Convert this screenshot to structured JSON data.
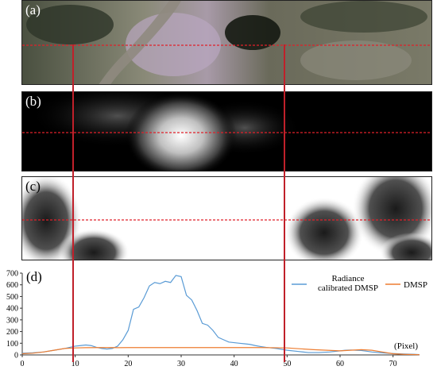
{
  "labels": {
    "a": "(a)",
    "b": "(b)",
    "c": "(c)",
    "d": "(d)"
  },
  "chart_data": {
    "type": "line",
    "xlabel": "(Pixel)",
    "xlim": [
      0,
      75
    ],
    "ylim": [
      0,
      700
    ],
    "xticks": [
      0,
      10,
      20,
      30,
      40,
      50,
      60,
      70
    ],
    "yticks": [
      0,
      100,
      200,
      300,
      400,
      500,
      600,
      700
    ],
    "legend_position": "top-right",
    "series": [
      {
        "name": "Radiance calibrated DMSP",
        "color": "#5a9bd5",
        "x": [
          0,
          2,
          4,
          6,
          8,
          9,
          10,
          11,
          12,
          13,
          14,
          15,
          16,
          17,
          18,
          19,
          20,
          21,
          22,
          23,
          24,
          25,
          26,
          27,
          28,
          29,
          30,
          31,
          32,
          33,
          34,
          35,
          36,
          37,
          38,
          39,
          40,
          41,
          42,
          43,
          44,
          45,
          46,
          48,
          50,
          52,
          54,
          56,
          58,
          60,
          61,
          62,
          63,
          64,
          65,
          66,
          68,
          70,
          72,
          74,
          75
        ],
        "y": [
          15,
          18,
          25,
          40,
          55,
          65,
          75,
          80,
          85,
          80,
          65,
          55,
          50,
          55,
          75,
          130,
          210,
          390,
          410,
          490,
          590,
          620,
          610,
          630,
          620,
          680,
          670,
          510,
          470,
          380,
          270,
          255,
          210,
          150,
          130,
          110,
          105,
          100,
          95,
          90,
          80,
          72,
          65,
          55,
          40,
          30,
          20,
          20,
          25,
          35,
          40,
          42,
          40,
          38,
          32,
          25,
          18,
          12,
          8,
          5,
          3
        ]
      },
      {
        "name": "DMSP",
        "color": "#ed7d31",
        "x": [
          0,
          2,
          4,
          6,
          8,
          10,
          12,
          15,
          17,
          18,
          20,
          25,
          30,
          35,
          40,
          45,
          50,
          55,
          60,
          62,
          64,
          66,
          68,
          70,
          72,
          75
        ],
        "y": [
          10,
          15,
          25,
          40,
          55,
          60,
          62,
          63,
          63,
          62,
          63,
          63,
          63,
          63,
          63,
          63,
          60,
          45,
          35,
          40,
          45,
          40,
          25,
          10,
          5,
          2
        ]
      }
    ]
  }
}
